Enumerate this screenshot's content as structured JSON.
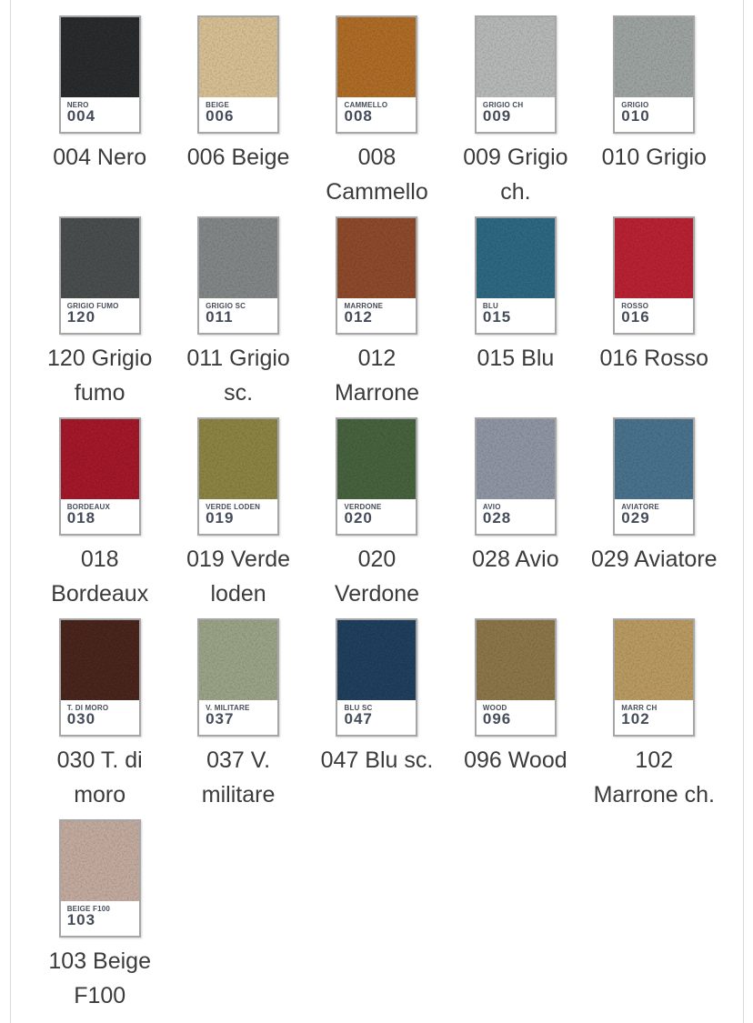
{
  "page": {
    "background": "#ffffff",
    "content_border_color": "#d9d9d9",
    "swatch_border_color": "#a6a6a6",
    "tag_background": "#ffffff",
    "tag_text_color": "#454c59",
    "caption_text_color": "#3b3b3b"
  },
  "swatches": [
    {
      "code": "004",
      "tag_name": "NERO",
      "caption_lines": [
        "004 Nero"
      ],
      "color": "#27292b"
    },
    {
      "code": "006",
      "tag_name": "BEIGE",
      "caption_lines": [
        "006 Beige"
      ],
      "color": "#d8bf93"
    },
    {
      "code": "008",
      "tag_name": "CAMMELLO",
      "caption_lines": [
        "008",
        "Cammello"
      ],
      "color": "#ae6b25"
    },
    {
      "code": "009",
      "tag_name": "GRIGIO CH",
      "caption_lines": [
        "009 Grigio",
        "ch."
      ],
      "color": "#b6b9b7"
    },
    {
      "code": "010",
      "tag_name": "GRIGIO",
      "caption_lines": [
        "010 Grigio"
      ],
      "color": "#9da3a1"
    },
    {
      "code": "120",
      "tag_name": "GRIGIO FUMO",
      "caption_lines": [
        "120 Grigio",
        "fumo"
      ],
      "color": "#484c4d"
    },
    {
      "code": "011",
      "tag_name": "GRIGIO SC",
      "caption_lines": [
        "011 Grigio",
        "sc."
      ],
      "color": "#828687"
    },
    {
      "code": "012",
      "tag_name": "MARRONE",
      "caption_lines": [
        "012",
        "Marrone"
      ],
      "color": "#8d4829"
    },
    {
      "code": "015",
      "tag_name": "BLU",
      "caption_lines": [
        "015 Blu"
      ],
      "color": "#2c6781"
    },
    {
      "code": "016",
      "tag_name": "ROSSO",
      "caption_lines": [
        "016 Rosso"
      ],
      "color": "#b82031"
    },
    {
      "code": "018",
      "tag_name": "BORDEAUX",
      "caption_lines": [
        "018",
        "Bordeaux"
      ],
      "color": "#a31628"
    },
    {
      "code": "019",
      "tag_name": "VERDE LODEN",
      "caption_lines": [
        "019 Verde",
        "loden"
      ],
      "color": "#8b8342"
    },
    {
      "code": "020",
      "tag_name": "VERDONE",
      "caption_lines": [
        "020",
        "Verdone"
      ],
      "color": "#45613c"
    },
    {
      "code": "028",
      "tag_name": "AVIO",
      "caption_lines": [
        "028 Avio"
      ],
      "color": "#8e95a4"
    },
    {
      "code": "029",
      "tag_name": "AVIATORE",
      "caption_lines": [
        "029 Aviatore"
      ],
      "color": "#48718c"
    },
    {
      "code": "030",
      "tag_name": "T. DI MORO",
      "caption_lines": [
        "030 T. di",
        "moro"
      ],
      "color": "#48231b"
    },
    {
      "code": "037",
      "tag_name": "V. MILITARE",
      "caption_lines": [
        "037 V.",
        "militare"
      ],
      "color": "#9aa386"
    },
    {
      "code": "047",
      "tag_name": "BLU SC",
      "caption_lines": [
        "047 Blu sc."
      ],
      "color": "#1e3e5c"
    },
    {
      "code": "096",
      "tag_name": "WOOD",
      "caption_lines": [
        "096 Wood"
      ],
      "color": "#8b7448"
    },
    {
      "code": "102",
      "tag_name": "MARR CH",
      "caption_lines": [
        "102",
        "Marrone ch."
      ],
      "color": "#b99a61"
    },
    {
      "code": "103",
      "tag_name": "BEIGE F100",
      "caption_lines": [
        "103 Beige",
        "F100"
      ],
      "color": "#c3aa9e"
    }
  ]
}
